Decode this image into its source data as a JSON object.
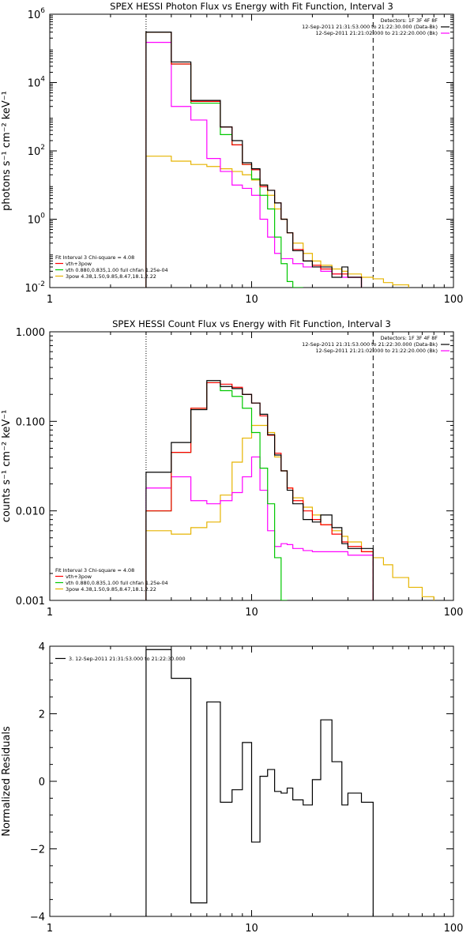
{
  "chart_data": [
    {
      "type": "line",
      "title": "SPEX HESSI Photon Flux vs Energy with Fit Function, Interval 3",
      "ylabel": "photons s⁻¹ cm⁻² keV⁻¹",
      "xlabel": "",
      "xscale": "log",
      "yscale": "log",
      "xlim": [
        1,
        100
      ],
      "ylim": [
        0.01,
        1000000
      ],
      "x_ticks": [
        {
          "v": 1,
          "label": "1"
        },
        {
          "v": 10,
          "label": "10"
        },
        {
          "v": 100,
          "label": "100"
        }
      ],
      "y_ticks": [
        {
          "v": 0.01,
          "base": "10",
          "exp": "-2"
        },
        {
          "v": 1,
          "base": "10",
          "exp": "0"
        },
        {
          "v": 100,
          "base": "10",
          "exp": "2"
        },
        {
          "v": 10000,
          "base": "10",
          "exp": "4"
        },
        {
          "v": 1000000,
          "base": "10",
          "exp": "6"
        }
      ],
      "header_lines": [
        "Detectors: 1F 3F 4F 8F",
        "12-Sep-2011 21:31:53.000 to 21:22:30.000 (Data-Bk)",
        "12-Sep-2011 21:21:02.000 to 21:22:20.000 (Bk)"
      ],
      "header_colors": [
        "",
        "#000000",
        "#ff00ff"
      ],
      "legend_title": "Fit Interval 3   Chi-square = 4.08",
      "legend": [
        {
          "label": "vth+3pow",
          "color": "#ff0000"
        },
        {
          "label": "vth 0.880,0.835,1.00  full chfan 1.25e-04",
          "color": "#00c800"
        },
        {
          "label": "3pow 4.38,1.50,9.85,8.47,18.1,2.22",
          "color": "#e6b400"
        }
      ],
      "edges": [
        3.0,
        4.0,
        5.0,
        6.0,
        7.0,
        8.0,
        9.0,
        10.0,
        11.0,
        12.0,
        13.0,
        14.0,
        15.0,
        16.0,
        18.0,
        20.0,
        22.0,
        25.0,
        28.0,
        30.0,
        35.0,
        40.0,
        45.0,
        50.0,
        60.0
      ],
      "series": [
        {
          "name": "black",
          "color": "#000000",
          "values": [
            300000,
            40000,
            3000,
            3000,
            500,
            200,
            45,
            30,
            10,
            7,
            3,
            1,
            0.4,
            0.12,
            0.06,
            0.04,
            0.04,
            0.02,
            0.04,
            0.02
          ]
        },
        {
          "name": "red",
          "color": "#ff0000",
          "values": [
            300000,
            35000,
            2800,
            2800,
            500,
            150,
            40,
            28,
            9,
            7,
            3,
            1,
            0.4,
            0.13,
            0.06,
            0.045,
            0.035,
            0.025,
            0.025,
            0.02
          ]
        },
        {
          "name": "green",
          "color": "#00c800",
          "values": [
            300000,
            35000,
            2500,
            2500,
            300,
            150,
            40,
            15,
            5,
            2,
            0.3,
            0.05,
            0.015,
            0.01
          ]
        },
        {
          "name": "magenta",
          "color": "#ff00ff",
          "values": [
            150000,
            2000,
            800,
            60,
            25,
            10,
            8,
            5,
            1,
            0.3,
            0.1,
            0.07,
            0.07,
            0.05,
            0.04,
            0.04,
            0.03,
            0.025,
            0.02,
            0.02
          ]
        },
        {
          "name": "yellow",
          "color": "#e6b400",
          "values": [
            70,
            50,
            40,
            35,
            30,
            25,
            20,
            14,
            10,
            5,
            2,
            1,
            0.4,
            0.2,
            0.1,
            0.06,
            0.045,
            0.035,
            0.03,
            0.025,
            0.02,
            0.018,
            0.014,
            0.012
          ]
        }
      ]
    },
    {
      "type": "line",
      "title": "SPEX HESSI Count Flux vs Energy with Fit Function, Interval 3",
      "ylabel": "counts s⁻¹ cm⁻² keV⁻¹",
      "xlabel": "",
      "xscale": "log",
      "yscale": "log",
      "xlim": [
        1,
        100
      ],
      "ylim": [
        0.001,
        1.0
      ],
      "x_ticks": [
        {
          "v": 1,
          "label": "1"
        },
        {
          "v": 10,
          "label": "10"
        },
        {
          "v": 100,
          "label": "100"
        }
      ],
      "y_ticks": [
        {
          "v": 0.001,
          "label": "0.001"
        },
        {
          "v": 0.01,
          "label": "0.010"
        },
        {
          "v": 0.1,
          "label": "0.100"
        },
        {
          "v": 1.0,
          "label": "1.000"
        }
      ],
      "header_lines": [
        "Detectors: 1F 3F 4F 8F",
        "12-Sep-2011 21:31:53.000 to 21:22:30.000 (Data-Bk)",
        "12-Sep-2011 21:21:02.000 to 21:22:20.000 (Bk)"
      ],
      "header_colors": [
        "",
        "#000000",
        "#ff00ff"
      ],
      "legend_title": "Fit Interval 3   Chi-square = 4.08",
      "legend": [
        {
          "label": "vth+3pow",
          "color": "#ff0000"
        },
        {
          "label": "vth 0.880,0.835,1.00  full chfan 1.25e-04",
          "color": "#00c800"
        },
        {
          "label": "3pow 4.38,1.50,9.85,8.47,18.1,2.22",
          "color": "#e6b400"
        }
      ],
      "edges": [
        3.0,
        4.0,
        5.0,
        6.0,
        7.0,
        8.0,
        9.0,
        10.0,
        11.0,
        12.0,
        13.0,
        14.0,
        15.0,
        16.0,
        18.0,
        20.0,
        22.0,
        25.0,
        28.0,
        30.0,
        35.0,
        40.0,
        45.0,
        50.0,
        60.0,
        70.0,
        80.0
      ],
      "series": [
        {
          "name": "black",
          "color": "#000000",
          "values": [
            0.027,
            0.058,
            0.135,
            0.285,
            0.245,
            0.232,
            0.2,
            0.16,
            0.12,
            0.071,
            0.042,
            0.028,
            0.017,
            0.012,
            0.008,
            0.0075,
            0.009,
            0.0065,
            0.0043,
            0.0038,
            0.0038
          ]
        },
        {
          "name": "red",
          "color": "#ff0000",
          "values": [
            0.01,
            0.045,
            0.14,
            0.27,
            0.26,
            0.24,
            0.2,
            0.16,
            0.115,
            0.07,
            0.044,
            0.028,
            0.018,
            0.013,
            0.01,
            0.008,
            0.007,
            0.0055,
            0.0045,
            0.004,
            0.0035
          ]
        },
        {
          "name": "green",
          "color": "#00c800",
          "values": [
            0.01,
            0.045,
            0.14,
            0.27,
            0.22,
            0.19,
            0.14,
            0.075,
            0.03,
            0.012,
            0.003,
            0.001
          ]
        },
        {
          "name": "magenta",
          "color": "#ff00ff",
          "values": [
            0.018,
            0.024,
            0.013,
            0.012,
            0.013,
            0.016,
            0.024,
            0.04,
            0.017,
            0.006,
            0.004,
            0.0043,
            0.0042,
            0.0038,
            0.0036,
            0.0035,
            0.0035,
            0.0035,
            0.0035,
            0.0032,
            0.0032
          ]
        },
        {
          "name": "yellow",
          "color": "#e6b400",
          "values": [
            0.006,
            0.0055,
            0.0065,
            0.0075,
            0.015,
            0.035,
            0.065,
            0.09,
            0.09,
            0.075,
            0.04,
            0.028,
            0.018,
            0.014,
            0.011,
            0.009,
            0.007,
            0.006,
            0.0052,
            0.0045,
            0.0035,
            0.003,
            0.0025,
            0.0018,
            0.0014,
            0.0011
          ]
        }
      ]
    },
    {
      "type": "line",
      "title": "",
      "ylabel": "Normalized Residuals",
      "xlabel": "",
      "xscale": "log",
      "yscale": "linear",
      "xlim": [
        1,
        100
      ],
      "ylim": [
        -4,
        4
      ],
      "x_ticks": [
        {
          "v": 1,
          "label": "1"
        },
        {
          "v": 10,
          "label": "10"
        },
        {
          "v": 100,
          "label": "100"
        }
      ],
      "y_ticks": [
        {
          "v": -4,
          "label": "−4"
        },
        {
          "v": -2,
          "label": "−2"
        },
        {
          "v": 0,
          "label": "0"
        },
        {
          "v": 2,
          "label": "2"
        },
        {
          "v": 4,
          "label": "4"
        }
      ],
      "legend": [
        {
          "label": "3. 12-Sep-2011 21:31:53.000 to 21:22:30.000",
          "color": "#000000"
        }
      ],
      "edges": [
        3.0,
        4.0,
        5.0,
        6.0,
        7.0,
        8.0,
        9.0,
        10.0,
        11.0,
        12.0,
        13.0,
        14.0,
        15.0,
        16.0,
        18.0,
        20.0,
        22.0,
        25.0,
        28.0,
        30.0,
        35.0,
        40.0
      ],
      "series": [
        {
          "name": "residuals",
          "color": "#000000",
          "values": [
            3.9,
            3.05,
            -3.6,
            2.35,
            -0.62,
            -0.25,
            1.15,
            -1.8,
            0.15,
            0.35,
            -0.3,
            -0.35,
            -0.2,
            -0.55,
            -0.7,
            0.05,
            1.82,
            0.58,
            -0.7,
            -0.35,
            -0.62
          ]
        }
      ]
    }
  ]
}
